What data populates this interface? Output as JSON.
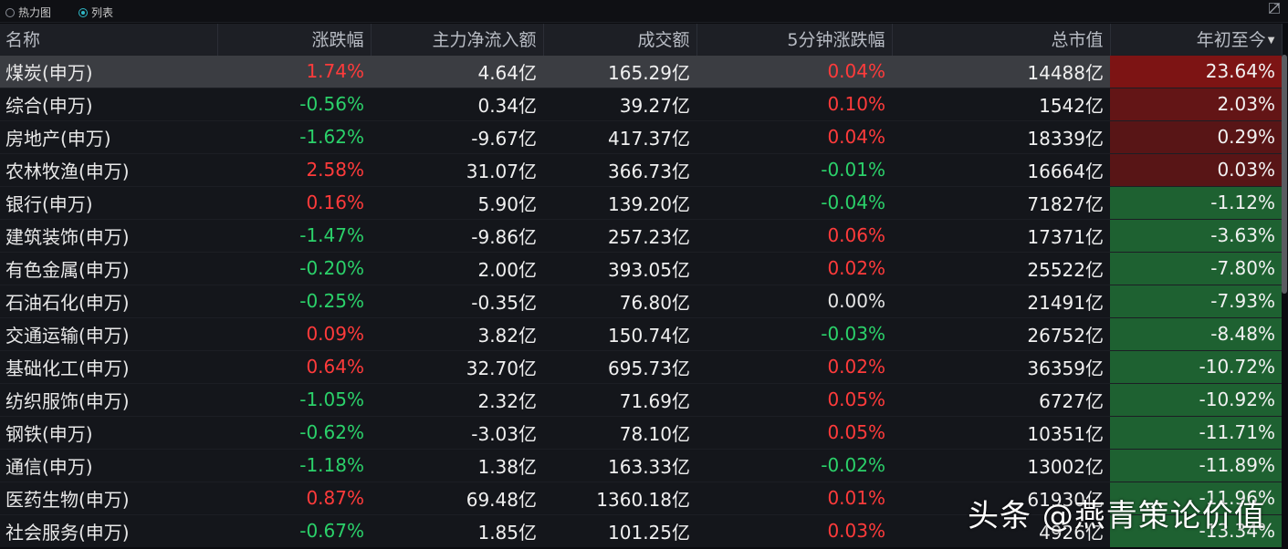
{
  "view_toggle": {
    "heatmap_label": "热力图",
    "list_label": "列表",
    "selected": "list"
  },
  "icons": {
    "expand": "expand-window-icon",
    "sort": "sort-desc-icon"
  },
  "colors": {
    "up": "#ff3b3b",
    "down": "#2bd16a",
    "ytd_positive": "#7d1414",
    "ytd_negative": "#1e6131"
  },
  "columns": [
    "名称",
    "涨跌幅",
    "主力净流入额",
    "成交额",
    "5分钟涨跌幅",
    "总市值",
    "年初至今"
  ],
  "sorted_column": "年初至今",
  "rows": [
    {
      "name": "煤炭(申万)",
      "change": "1.74%",
      "net_inflow": "4.64亿",
      "turnover": "165.29亿",
      "five_min": "0.04%",
      "market_cap": "14488亿",
      "ytd": "23.64%",
      "ytd_shade": 1.0
    },
    {
      "name": "综合(申万)",
      "change": "-0.56%",
      "net_inflow": "0.34亿",
      "turnover": "39.27亿",
      "five_min": "0.10%",
      "market_cap": "1542亿",
      "ytd": "2.03%",
      "ytd_shade": 0.75
    },
    {
      "name": "房地产(申万)",
      "change": "-1.62%",
      "net_inflow": "-9.67亿",
      "turnover": "417.37亿",
      "five_min": "0.04%",
      "market_cap": "18339亿",
      "ytd": "0.29%",
      "ytd_shade": 0.65
    },
    {
      "name": "农林牧渔(申万)",
      "change": "2.58%",
      "net_inflow": "31.07亿",
      "turnover": "366.73亿",
      "five_min": "-0.01%",
      "market_cap": "16664亿",
      "ytd": "0.03%",
      "ytd_shade": 0.65
    },
    {
      "name": "银行(申万)",
      "change": "0.16%",
      "net_inflow": "5.90亿",
      "turnover": "139.20亿",
      "five_min": "-0.04%",
      "market_cap": "71827亿",
      "ytd": "-1.12%",
      "ytd_shade": 1.0
    },
    {
      "name": "建筑装饰(申万)",
      "change": "-1.47%",
      "net_inflow": "-9.86亿",
      "turnover": "257.23亿",
      "five_min": "0.06%",
      "market_cap": "17371亿",
      "ytd": "-3.63%",
      "ytd_shade": 1.0
    },
    {
      "name": "有色金属(申万)",
      "change": "-0.20%",
      "net_inflow": "2.00亿",
      "turnover": "393.05亿",
      "five_min": "0.02%",
      "market_cap": "25522亿",
      "ytd": "-7.80%",
      "ytd_shade": 1.0
    },
    {
      "name": "石油石化(申万)",
      "change": "-0.25%",
      "net_inflow": "-0.35亿",
      "turnover": "76.80亿",
      "five_min": "0.00%",
      "market_cap": "21491亿",
      "ytd": "-7.93%",
      "ytd_shade": 1.0
    },
    {
      "name": "交通运输(申万)",
      "change": "0.09%",
      "net_inflow": "3.82亿",
      "turnover": "150.74亿",
      "five_min": "-0.03%",
      "market_cap": "26752亿",
      "ytd": "-8.48%",
      "ytd_shade": 1.0
    },
    {
      "name": "基础化工(申万)",
      "change": "0.64%",
      "net_inflow": "32.70亿",
      "turnover": "695.73亿",
      "five_min": "0.02%",
      "market_cap": "36359亿",
      "ytd": "-10.72%",
      "ytd_shade": 1.0
    },
    {
      "name": "纺织服饰(申万)",
      "change": "-1.05%",
      "net_inflow": "2.32亿",
      "turnover": "71.69亿",
      "five_min": "0.05%",
      "market_cap": "6727亿",
      "ytd": "-10.92%",
      "ytd_shade": 1.0
    },
    {
      "name": "钢铁(申万)",
      "change": "-0.62%",
      "net_inflow": "-3.03亿",
      "turnover": "78.10亿",
      "five_min": "0.05%",
      "market_cap": "10351亿",
      "ytd": "-11.71%",
      "ytd_shade": 1.0
    },
    {
      "name": "通信(申万)",
      "change": "-1.18%",
      "net_inflow": "1.38亿",
      "turnover": "163.33亿",
      "five_min": "-0.02%",
      "market_cap": "13002亿",
      "ytd": "-11.89%",
      "ytd_shade": 1.0
    },
    {
      "name": "医药生物(申万)",
      "change": "0.87%",
      "net_inflow": "69.48亿",
      "turnover": "1360.18亿",
      "five_min": "0.01%",
      "market_cap": "61930亿",
      "ytd": "-11.96%",
      "ytd_shade": 1.0
    },
    {
      "name": "社会服务(申万)",
      "change": "-0.67%",
      "net_inflow": "1.85亿",
      "turnover": "101.25亿",
      "five_min": "0.03%",
      "market_cap": "4926亿",
      "ytd": "-13.34%",
      "ytd_shade": 1.0
    }
  ],
  "watermark": "头条 @燕青策论价值"
}
